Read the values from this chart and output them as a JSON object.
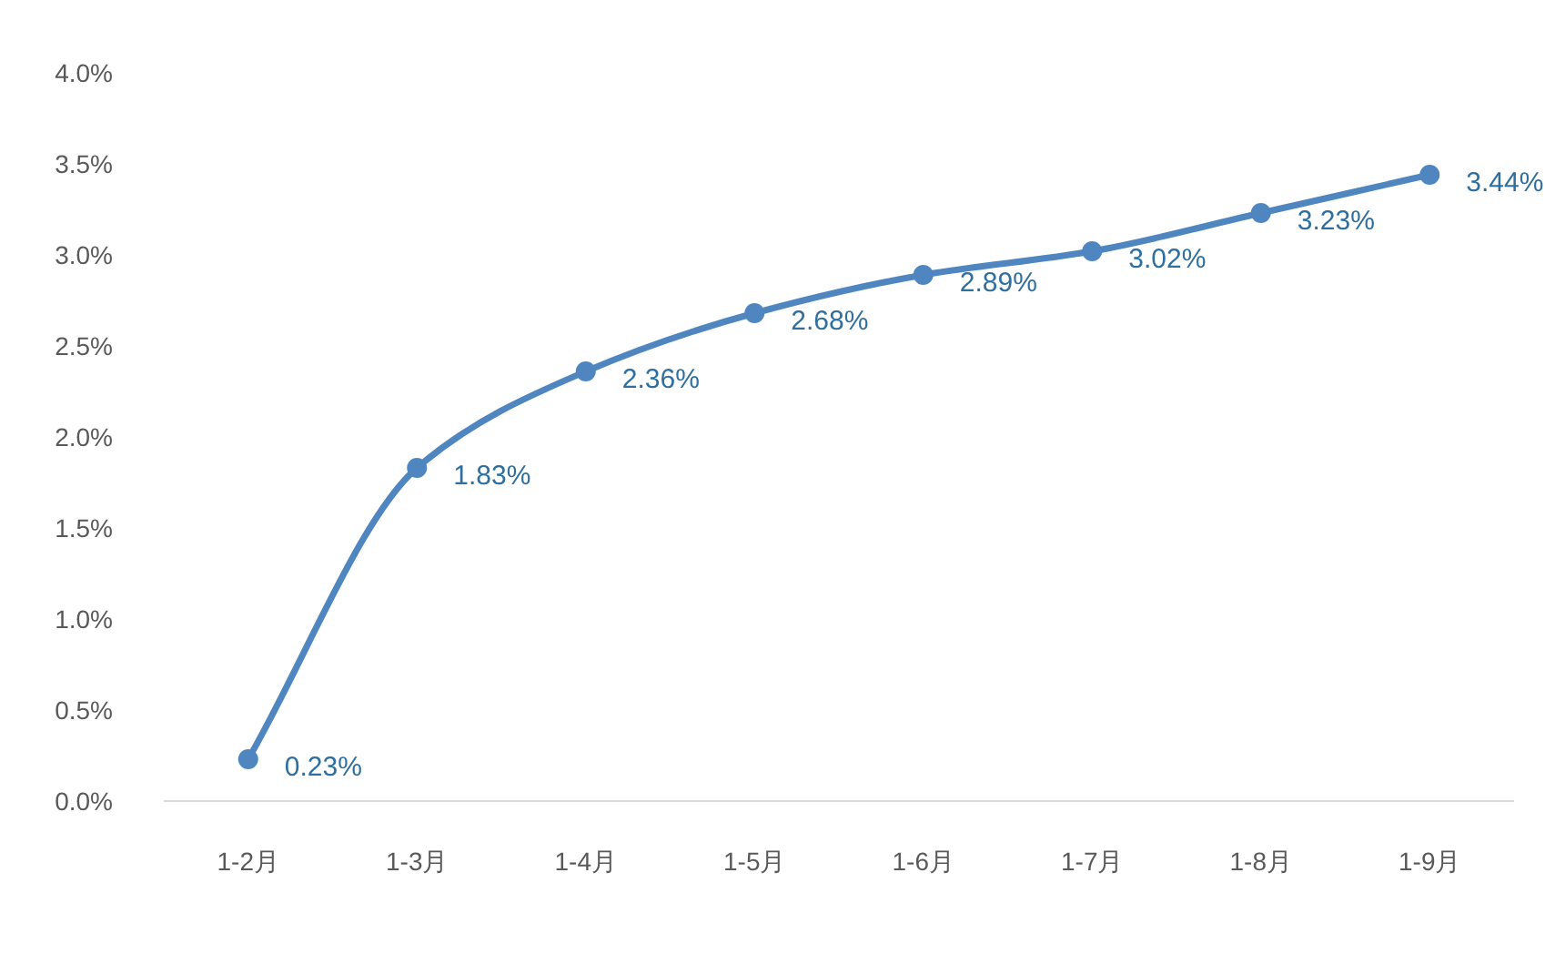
{
  "chart_data": {
    "type": "line",
    "categories": [
      "1-2月",
      "1-3月",
      "1-4月",
      "1-5月",
      "1-6月",
      "1-7月",
      "1-8月",
      "1-9月"
    ],
    "values": [
      0.23,
      1.83,
      2.36,
      2.68,
      2.89,
      3.02,
      3.23,
      3.44
    ],
    "value_labels": [
      "0.23%",
      "1.83%",
      "2.36%",
      "2.68%",
      "2.89%",
      "3.02%",
      "3.23%",
      "3.44%"
    ],
    "color": "#4f86c0",
    "marker": "circle",
    "ylim": [
      0,
      4
    ],
    "yticks": [
      {
        "value": 0,
        "label": "0.0%"
      },
      {
        "value": 0.5,
        "label": "0.5%"
      },
      {
        "value": 1,
        "label": "1.0%"
      },
      {
        "value": 1.5,
        "label": "1.5%"
      },
      {
        "value": 2,
        "label": "2.0%"
      },
      {
        "value": 2.5,
        "label": "2.5%"
      },
      {
        "value": 3,
        "label": "3.0%"
      },
      {
        "value": 3.5,
        "label": "3.5%"
      },
      {
        "value": 4,
        "label": "4.0%"
      }
    ]
  }
}
